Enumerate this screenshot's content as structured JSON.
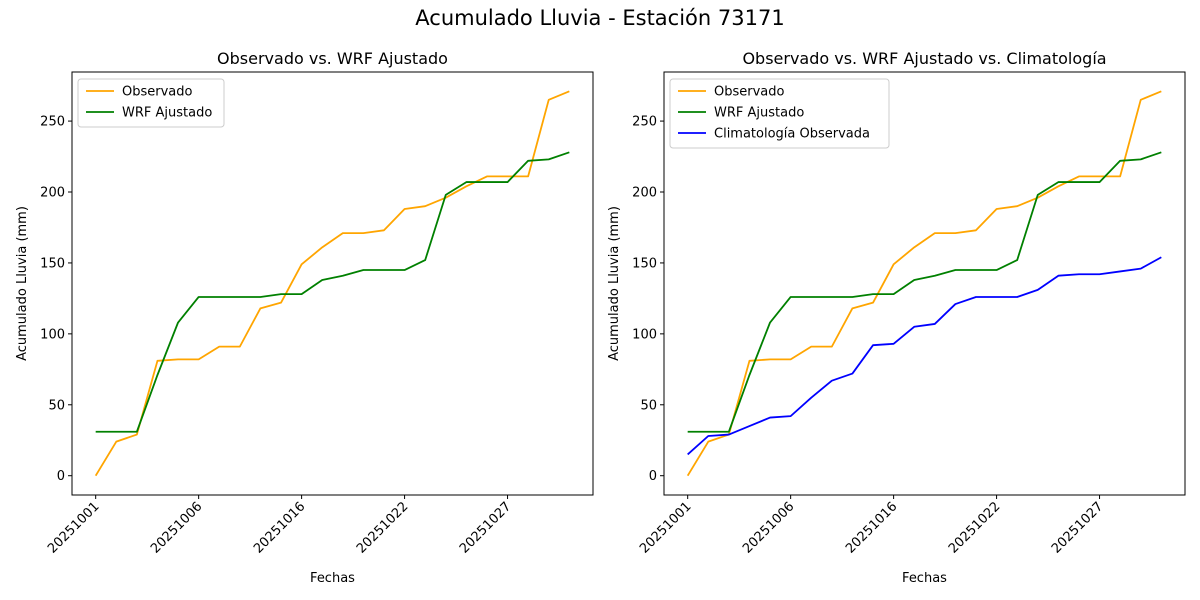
{
  "suptitle": "Acumulado Lluvia - Estación 73171",
  "chart_data": [
    {
      "type": "line",
      "title": "Observado vs. WRF Ajustado",
      "xlabel": "Fechas",
      "ylabel": "Acumulado Lluvia (mm)",
      "x_tick_labels": [
        "20251001",
        "20251006",
        "20251016",
        "20251022",
        "20251027"
      ],
      "x_tick_index": [
        0,
        5,
        10,
        15,
        20
      ],
      "yticks": [
        0,
        50,
        100,
        150,
        200,
        250
      ],
      "ylim": [
        -13.6,
        284.6
      ],
      "legend_position": "upper-left",
      "grid": false,
      "series": [
        {
          "name": "Observado",
          "color": "#ffa500",
          "values": [
            0,
            24,
            29,
            81,
            82,
            82,
            91,
            91,
            118,
            122,
            149,
            161,
            171,
            171,
            173,
            188,
            190,
            196,
            204,
            211,
            211,
            211,
            265,
            271
          ]
        },
        {
          "name": "WRF Ajustado",
          "color": "#008000",
          "values": [
            31,
            31,
            31,
            71,
            108,
            126,
            126,
            126,
            126,
            128,
            128,
            138,
            141,
            145,
            145,
            145,
            152,
            198,
            207,
            207,
            207,
            222,
            223,
            228
          ]
        }
      ]
    },
    {
      "type": "line",
      "title": "Observado vs. WRF Ajustado vs. Climatología",
      "xlabel": "Fechas",
      "ylabel": "Acumulado Lluvia (mm)",
      "x_tick_labels": [
        "20251001",
        "20251006",
        "20251016",
        "20251022",
        "20251027"
      ],
      "x_tick_index": [
        0,
        5,
        10,
        15,
        20
      ],
      "yticks": [
        0,
        50,
        100,
        150,
        200,
        250
      ],
      "ylim": [
        -13.6,
        284.6
      ],
      "legend_position": "upper-left",
      "grid": false,
      "series": [
        {
          "name": "Observado",
          "color": "#ffa500",
          "values": [
            0,
            24,
            29,
            81,
            82,
            82,
            91,
            91,
            118,
            122,
            149,
            161,
            171,
            171,
            173,
            188,
            190,
            196,
            204,
            211,
            211,
            211,
            265,
            271
          ]
        },
        {
          "name": "WRF Ajustado",
          "color": "#008000",
          "values": [
            31,
            31,
            31,
            71,
            108,
            126,
            126,
            126,
            126,
            128,
            128,
            138,
            141,
            145,
            145,
            145,
            152,
            198,
            207,
            207,
            207,
            222,
            223,
            228
          ]
        },
        {
          "name": "Climatología Observada",
          "color": "#0000ff",
          "values": [
            15,
            28,
            29,
            35,
            41,
            42,
            55,
            67,
            72,
            92,
            93,
            105,
            107,
            121,
            126,
            126,
            126,
            131,
            141,
            142,
            142,
            144,
            146,
            154
          ]
        }
      ]
    }
  ]
}
